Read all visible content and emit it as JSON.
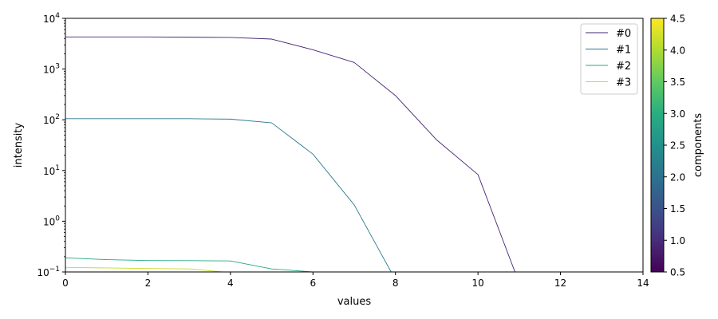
{
  "chart_data": {
    "type": "line",
    "xlabel": "values",
    "ylabel": "intensity",
    "xlim": [
      0,
      14
    ],
    "ylim": [
      0.1,
      10000
    ],
    "yscale": "log",
    "x_ticks": [
      "0",
      "2",
      "4",
      "6",
      "8",
      "10",
      "12",
      "14"
    ],
    "y_ticks": [
      {
        "base": "10",
        "exp": "−1"
      },
      {
        "base": "10",
        "exp": "0"
      },
      {
        "base": "10",
        "exp": "1"
      },
      {
        "base": "10",
        "exp": "2"
      },
      {
        "base": "10",
        "exp": "3"
      },
      {
        "base": "10",
        "exp": "4"
      }
    ],
    "legend_position": "top-right",
    "series": [
      {
        "name": "#0",
        "color": "#482374",
        "x": [
          0,
          1,
          2,
          3,
          4,
          5,
          6,
          7,
          8,
          9,
          10,
          11
        ],
        "y": [
          4300,
          4300,
          4300,
          4250,
          4200,
          3900,
          2400,
          1350,
          300,
          40,
          8.3,
          0.06
        ]
      },
      {
        "name": "#1",
        "color": "#2a788e",
        "x": [
          0,
          1,
          2,
          3,
          4,
          5,
          6,
          7,
          8
        ],
        "y": [
          105,
          105,
          105,
          105,
          103,
          87,
          21,
          2.1,
          0.07
        ]
      },
      {
        "name": "#2",
        "color": "#22a884",
        "x": [
          0,
          1,
          2,
          3,
          4,
          5,
          6
        ],
        "y": [
          0.19,
          0.175,
          0.168,
          0.167,
          0.165,
          0.115,
          0.1
        ]
      },
      {
        "name": "#3",
        "color": "#bddf26",
        "x": [
          0,
          1,
          2,
          3,
          4
        ],
        "y": [
          0.123,
          0.12,
          0.117,
          0.115,
          0.097
        ]
      }
    ],
    "colorbar": {
      "label": "components",
      "ticks": [
        "0.5",
        "1.0",
        "1.5",
        "2.0",
        "2.5",
        "3.0",
        "3.5",
        "4.0",
        "4.5"
      ],
      "range": [
        0.5,
        4.5
      ],
      "colormap": "viridis"
    }
  }
}
